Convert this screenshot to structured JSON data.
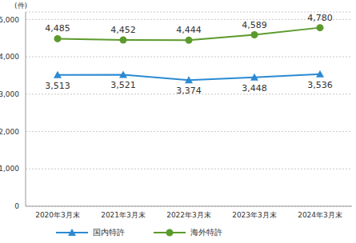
{
  "chart_data": {
    "type": "line",
    "ylabel": "(件)",
    "categories": [
      "2020年3月末",
      "2021年3月末",
      "2022年3月末",
      "2023年3月末",
      "2024年3月末"
    ],
    "series": [
      {
        "name": "国内特許",
        "color": "#2b8ad3",
        "marker": "triangle",
        "line_style": "solid",
        "values": [
          3513,
          3521,
          3374,
          3448,
          3536
        ],
        "value_labels": [
          "3,513",
          "3,521",
          "3,374",
          "3,448",
          "3,536"
        ]
      },
      {
        "name": "海外特許",
        "color": "#5b9a2c",
        "marker": "circle",
        "line_style": "solid",
        "values": [
          4485,
          4452,
          4444,
          4589,
          4780
        ],
        "value_labels": [
          "4,485",
          "4,452",
          "4,444",
          "4,589",
          "4,780"
        ]
      }
    ],
    "ylim": [
      0,
      5200
    ],
    "yticks": [
      {
        "value": 0,
        "label": "0"
      },
      {
        "value": 1000,
        "label": "1,000"
      },
      {
        "value": 2000,
        "label": "2,000"
      },
      {
        "value": 3000,
        "label": "3,000"
      },
      {
        "value": 4000,
        "label": "4,000"
      },
      {
        "value": 5000,
        "label": "5,000"
      }
    ],
    "grid": true,
    "data_labels": true,
    "legend": "bottom-left"
  }
}
